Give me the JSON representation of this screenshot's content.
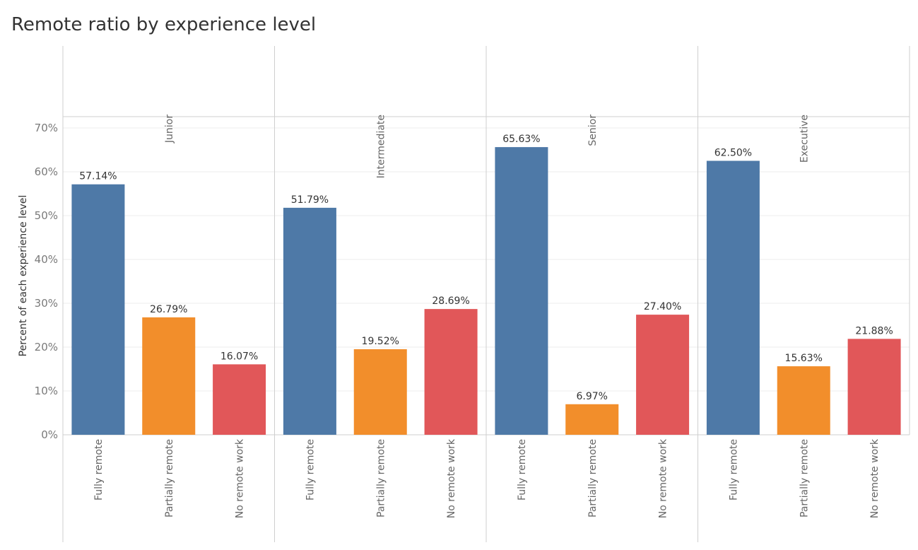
{
  "chart_data": {
    "type": "bar",
    "title": "Remote ratio by experience level",
    "ylabel": "Percent of each experience level",
    "xlabel": "",
    "ylim": [
      0,
      72
    ],
    "yticks": [
      "0%",
      "10%",
      "20%",
      "30%",
      "40%",
      "50%",
      "60%",
      "70%"
    ],
    "ytick_values": [
      0,
      10,
      20,
      30,
      40,
      50,
      60,
      70
    ],
    "categories": [
      "Fully remote",
      "Partially remote",
      "No remote work"
    ],
    "colors": [
      "#4e79a7",
      "#f28e2b",
      "#e15759"
    ],
    "grid": true,
    "panels": [
      {
        "name": "Junior",
        "values": [
          57.14,
          26.79,
          16.07
        ],
        "labels": [
          "57.14%",
          "26.79%",
          "16.07%"
        ]
      },
      {
        "name": "Intermediate",
        "values": [
          51.79,
          19.52,
          28.69
        ],
        "labels": [
          "51.79%",
          "19.52%",
          "28.69%"
        ]
      },
      {
        "name": "Senior",
        "values": [
          65.63,
          6.97,
          27.4
        ],
        "labels": [
          "65.63%",
          "6.97%",
          "27.40%"
        ]
      },
      {
        "name": "Executive",
        "values": [
          62.5,
          15.63,
          21.88
        ],
        "labels": [
          "62.50%",
          "15.63%",
          "21.88%"
        ]
      }
    ]
  }
}
